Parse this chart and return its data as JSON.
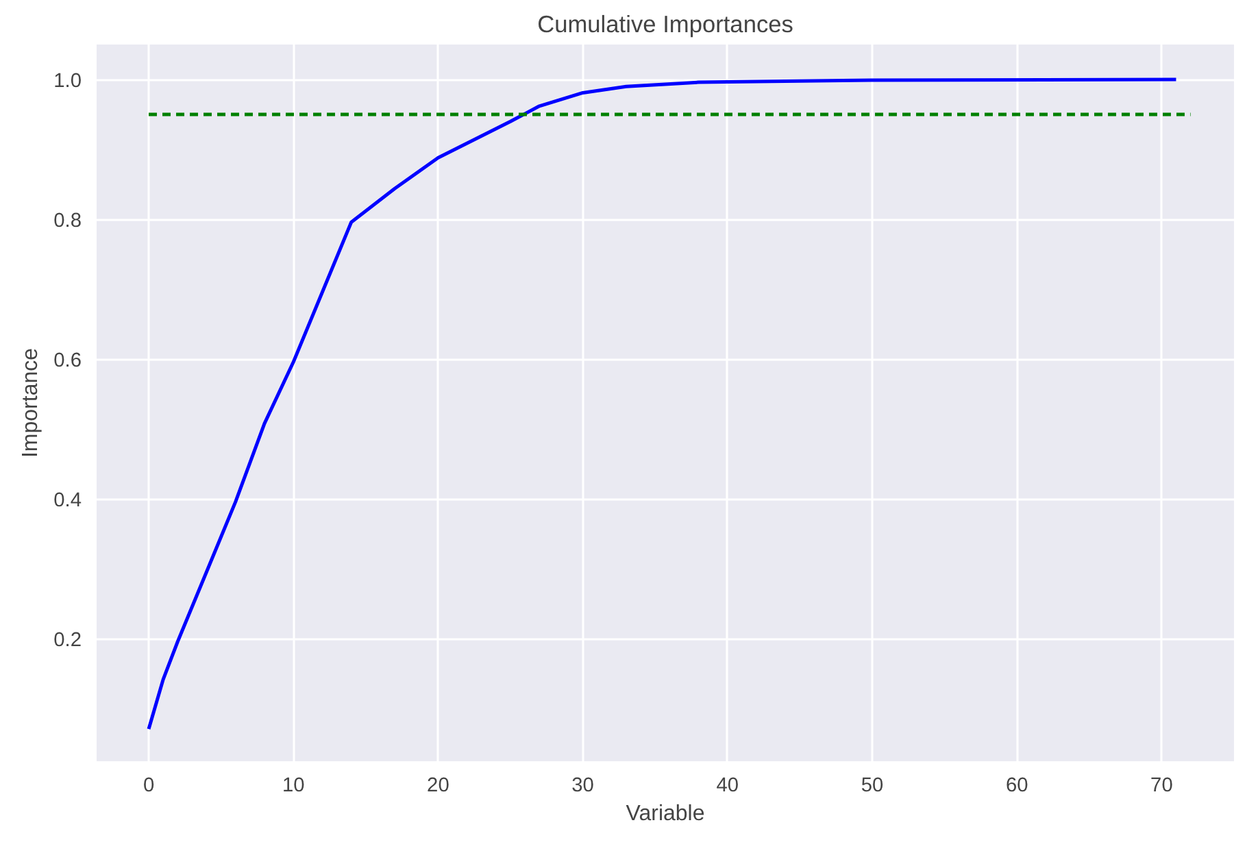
{
  "chart_data": {
    "type": "line",
    "title": "Cumulative Importances",
    "xlabel": "Variable",
    "ylabel": "Importance",
    "xlim": [
      -3.6,
      75
    ],
    "ylim": [
      0.025,
      1.05
    ],
    "xticks": [
      0,
      10,
      20,
      30,
      40,
      50,
      60,
      70
    ],
    "yticks": [
      0.2,
      0.4,
      0.6,
      0.8,
      {
        "value": 1,
        "label": "1.0"
      }
    ],
    "grid": true,
    "series": [
      {
        "color": "#0000ff",
        "line_style": "solid",
        "x": [
          0,
          1,
          2,
          4,
          6,
          8,
          10,
          12,
          14,
          17,
          20,
          25,
          27,
          30,
          33,
          38,
          50,
          71
        ],
        "values": [
          0.071,
          0.142,
          0.196,
          0.296,
          0.396,
          0.508,
          0.596,
          0.696,
          0.796,
          0.844,
          0.888,
          0.94,
          0.962,
          0.981,
          0.99,
          0.996,
          0.999,
          1.0
        ]
      },
      {
        "color": "#008000",
        "line_style": "dashed",
        "x": [
          0,
          72
        ],
        "values": [
          0.95,
          0.95
        ]
      }
    ]
  }
}
